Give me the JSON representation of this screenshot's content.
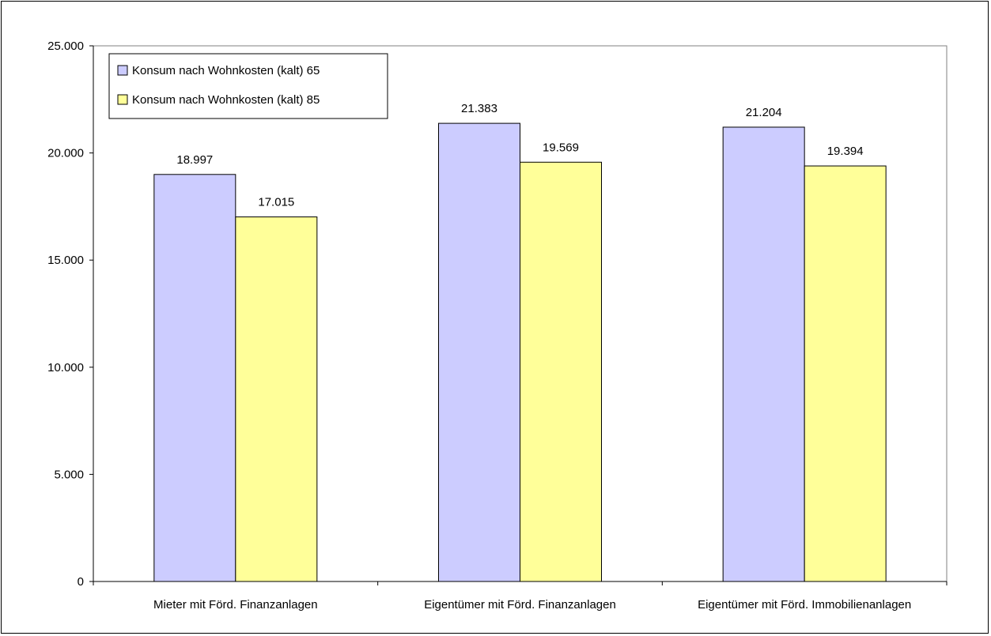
{
  "chart_data": {
    "type": "bar",
    "title": "",
    "xlabel": "",
    "ylabel": "",
    "categories": [
      "Mieter mit Förd. Finanzanlagen",
      "Eigentümer mit Förd. Finanzanlagen",
      "Eigentümer mit Förd. Immobilienanlagen"
    ],
    "series": [
      {
        "name": "Konsum nach Wohnkosten (kalt) 65",
        "values": [
          18997,
          21383,
          21204
        ],
        "labels": [
          "18.997",
          "21.383",
          "21.204"
        ],
        "color": "#ccccff"
      },
      {
        "name": "Konsum nach Wohnkosten (kalt) 85",
        "values": [
          17015,
          19569,
          19394
        ],
        "labels": [
          "17.015",
          "19.569",
          "19.394"
        ],
        "color": "#ffff99"
      }
    ],
    "ylim": [
      0,
      25000
    ],
    "yticks": [
      0,
      5000,
      10000,
      15000,
      20000,
      25000
    ],
    "ytick_labels": [
      "0",
      "5.000",
      "10.000",
      "15.000",
      "20.000",
      "25.000"
    ],
    "grid": false,
    "legend_position": "top-left"
  }
}
